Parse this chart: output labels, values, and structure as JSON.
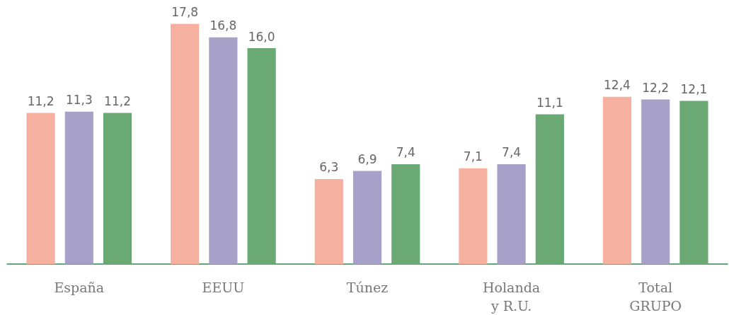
{
  "chart_data": {
    "type": "bar",
    "categories": [
      "España",
      "EEUU",
      "Túnez",
      "Holanda\ny R.U.",
      "Total\nGRUPO"
    ],
    "series": [
      {
        "color": "#f5b0a0",
        "values": [
          11.2,
          17.8,
          6.3,
          7.1,
          12.4
        ],
        "value_labels": [
          "11,2",
          "17,8",
          "6,3",
          "7,1",
          "12,4"
        ]
      },
      {
        "color": "#a7a0c8",
        "values": [
          11.3,
          16.8,
          6.9,
          7.4,
          12.2
        ],
        "value_labels": [
          "11,3",
          "16,8",
          "6,9",
          "7,4",
          "12,2"
        ]
      },
      {
        "color": "#6aa874",
        "values": [
          11.2,
          16.0,
          7.4,
          11.1,
          12.1
        ],
        "value_labels": [
          "11,2",
          "16,0",
          "7,4",
          "11,1",
          "12,1"
        ]
      }
    ],
    "tick_labels": "x"
  }
}
